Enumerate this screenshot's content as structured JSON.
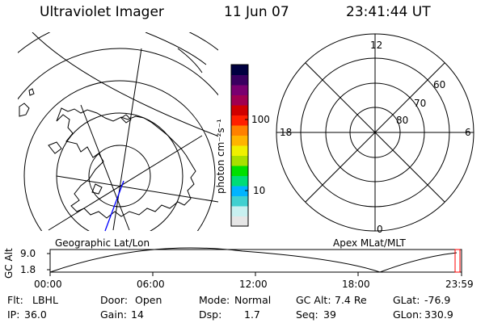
{
  "header": {
    "instrument": "Ultraviolet Imager",
    "date": "11 Jun 07",
    "time": "23:41:44 UT"
  },
  "left_map": {
    "label": "Geographic Lat/Lon"
  },
  "colorbar": {
    "unit_label": "photon cm⁻²s⁻¹",
    "tick_100": "100",
    "tick_10": "10",
    "colors": [
      "#e6e6e6",
      "#c8f0f0",
      "#40d0d0",
      "#00b4ff",
      "#00dc78",
      "#00e000",
      "#a8e000",
      "#f0f000",
      "#ffb400",
      "#ff8000",
      "#ff2000",
      "#d00000",
      "#a00050",
      "#7a0070",
      "#3a0060",
      "#000040"
    ]
  },
  "right_map": {
    "label": "Apex MLat/MLT",
    "mlt_labels": {
      "top": "12",
      "left": "18",
      "right": "6",
      "bottom": "0"
    },
    "lat_labels": [
      "60",
      "70",
      "80"
    ]
  },
  "timeline": {
    "y_label": "GC Alt",
    "y_ticks": [
      "9.0",
      "1.8"
    ],
    "x_ticks": [
      "00:00",
      "06:00",
      "12:00",
      "18:00",
      "23:59"
    ]
  },
  "status": [
    {
      "key": "Flt:",
      "value": "LBHL"
    },
    {
      "key": "Door:",
      "value": "Open"
    },
    {
      "key": "Mode:",
      "value": "Normal"
    },
    {
      "key": "GC Alt:",
      "value": "7.4 Re"
    },
    {
      "key": "GLat:",
      "value": "-76.9"
    },
    {
      "key": "IP:",
      "value": "36.0"
    },
    {
      "key": "Gain:",
      "value": "14"
    },
    {
      "key": "Dsp:",
      "value": "1.7"
    },
    {
      "key": "Seq:",
      "value": "39"
    },
    {
      "key": "GLon:",
      "value": "330.9"
    }
  ]
}
